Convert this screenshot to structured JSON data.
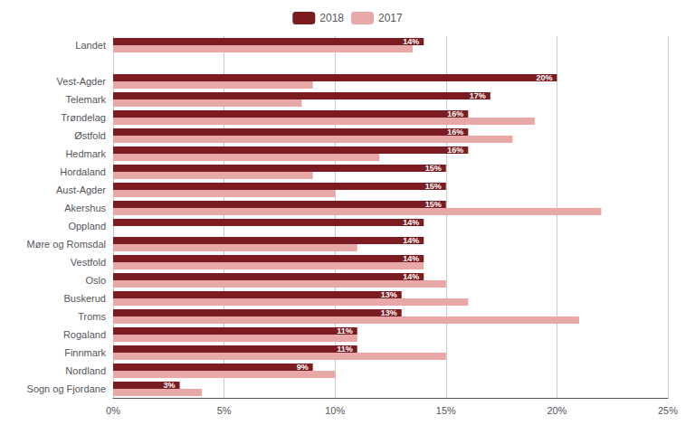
{
  "chart_data": {
    "type": "bar",
    "orientation": "horizontal",
    "categories": [
      "Landet",
      null,
      "Vest-Agder",
      "Telemark",
      "Trøndelag",
      "Østfold",
      "Hedmark",
      "Hordaland",
      "Aust-Agder",
      "Akershus",
      "Oppland",
      "Møre og Romsdal",
      "Vestfold",
      "Oslo",
      "Buskerud",
      "Troms",
      "Rogaland",
      "Finnmark",
      "Nordland",
      "Sogn og Fjordane"
    ],
    "series": [
      {
        "name": "2018",
        "color": "#7B1C22",
        "data_labels": true,
        "values": [
          14,
          0,
          20,
          17,
          16,
          16,
          16,
          15,
          15,
          15,
          14,
          14,
          14,
          14,
          13,
          13,
          11,
          11,
          9,
          3
        ],
        "value_labels": [
          "14%",
          null,
          "20%",
          "17%",
          "16%",
          "16%",
          "16%",
          "15%",
          "15%",
          "15%",
          "14%",
          "14%",
          "14%",
          "14%",
          "13%",
          "13%",
          "11%",
          "11%",
          "9%",
          "3%"
        ]
      },
      {
        "name": "2017",
        "color": "#E8A8A8",
        "values": [
          13.5,
          0,
          9,
          8.5,
          19,
          18,
          12,
          9,
          10,
          22,
          0,
          11,
          14,
          15,
          16,
          21,
          11,
          15,
          10,
          4
        ]
      }
    ],
    "xlim": [
      0,
      25
    ],
    "xticks": [
      {
        "value": 0,
        "label": "0%"
      },
      {
        "value": 5,
        "label": "5%"
      },
      {
        "value": 10,
        "label": "10%"
      },
      {
        "value": 15,
        "label": "15%"
      },
      {
        "value": 20,
        "label": "20%"
      },
      {
        "value": 25,
        "label": "25%"
      }
    ],
    "grid": true,
    "legend": "top"
  }
}
